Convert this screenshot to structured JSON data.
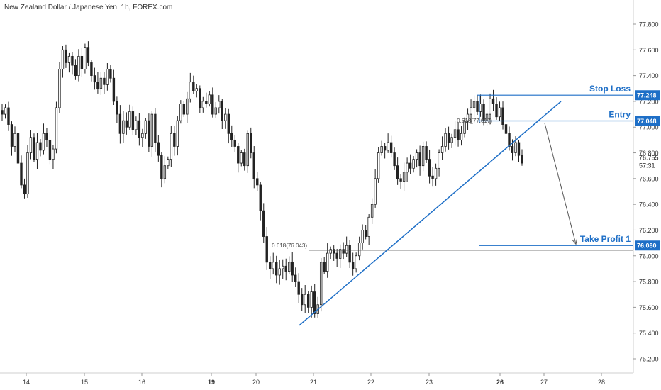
{
  "header": {
    "title": "New Zealand Dollar / Japanese Yen, 1h, FOREX.com"
  },
  "chart_data": {
    "type": "candlestick",
    "title": "New Zealand Dollar / Japanese Yen, 1h, FOREX.com",
    "ylim": [
      75.15,
      77.92
    ],
    "y_ticks": [
      "75.200",
      "75.400",
      "75.600",
      "75.800",
      "76.000",
      "76.200",
      "76.400",
      "76.600",
      "76.800",
      "77.000",
      "77.200",
      "77.400",
      "77.600",
      "77.800"
    ],
    "x_ticks": [
      "14",
      "15",
      "16",
      "19",
      "20",
      "21",
      "22",
      "23",
      "26",
      "27",
      "28"
    ],
    "current_price": "76.755",
    "countdown": "57:31",
    "levels": [
      {
        "label": "Stop Loss",
        "price": "77.248"
      },
      {
        "label": "Entry",
        "price": "77.048"
      },
      {
        "label": "Take Profit 1",
        "price": "76.080"
      }
    ],
    "fib_labels": [
      {
        "text": "0.618(76.043)",
        "price": 76.043
      },
      {
        "text": "0.618(77.017)",
        "price": 77.017
      }
    ],
    "trendline": {
      "from": 75.46,
      "to": 77.2
    },
    "colors": {
      "accent": "#1e6fc7",
      "candle": "#222222",
      "axis_text": "#333333",
      "grid_line": "#dddddd",
      "label_bg": "#1e6fc7"
    },
    "series": [
      {
        "values": [
          77.1,
          77.15,
          77.02,
          76.85,
          76.95,
          76.72,
          76.55,
          76.48,
          76.8,
          76.92,
          76.75,
          76.88,
          76.82,
          76.95,
          76.9,
          76.75,
          76.83,
          77.15,
          77.45,
          77.6,
          77.5,
          77.55,
          77.48,
          77.4,
          77.55,
          77.45,
          77.62,
          77.5,
          77.4,
          77.35,
          77.3,
          77.38,
          77.33,
          77.45,
          77.38,
          77.2,
          77.1,
          76.95,
          77.05,
          77.0,
          77.12,
          76.98,
          77.05,
          76.92,
          76.95,
          77.05,
          76.85,
          77.1,
          76.88,
          76.78,
          76.6,
          76.7,
          76.75,
          76.95,
          76.85,
          77.05,
          77.18,
          77.1,
          77.22,
          77.35,
          77.28,
          77.3,
          77.15,
          77.2,
          77.18,
          77.25,
          77.1,
          77.15,
          77.2,
          77.05,
          77.1,
          76.95,
          76.9,
          76.85,
          76.72,
          76.8,
          76.7,
          76.95,
          76.8,
          76.6,
          76.55,
          76.35,
          76.15,
          75.95,
          75.9,
          75.95,
          75.85,
          75.9,
          75.92,
          75.88,
          75.95,
          75.85,
          75.8,
          75.7,
          75.62,
          75.7,
          75.6,
          75.72,
          75.55,
          75.62,
          75.95,
          75.88,
          76.02,
          76.05,
          76.02,
          75.98,
          76.05,
          76.02,
          76.08,
          75.95,
          75.9,
          76.0,
          76.1,
          76.2,
          76.15,
          76.3,
          76.4,
          76.6,
          76.8,
          76.85,
          76.82,
          76.88,
          76.8,
          76.7,
          76.6,
          76.58,
          76.65,
          76.72,
          76.68,
          76.75,
          76.8,
          76.7,
          76.85,
          76.75,
          76.62,
          76.6,
          76.68,
          76.8,
          76.85,
          76.95,
          76.88,
          76.92,
          76.98,
          76.9,
          76.95,
          77.05,
          77.1,
          77.15,
          77.2,
          77.12,
          77.18,
          77.05,
          77.1,
          77.22,
          77.18,
          77.08,
          77.15,
          77.02,
          76.95,
          76.85,
          76.8,
          76.88,
          76.78,
          76.72
        ]
      }
    ]
  }
}
